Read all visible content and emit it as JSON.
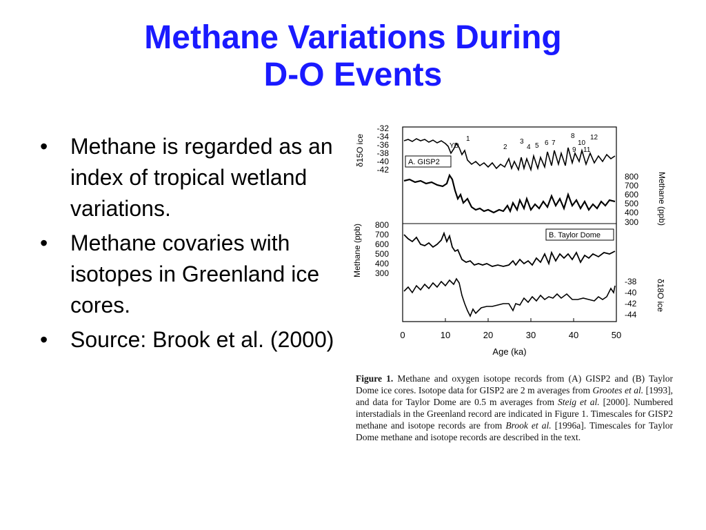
{
  "title": {
    "line1": "Methane Variations During",
    "line2": "D-O Events"
  },
  "bullets": [
    {
      "symbol": "•",
      "text": "Methane is regarded as an index of tropical wetland variations."
    },
    {
      "symbol": "•",
      "text": "Methane covaries with isotopes in Greenland ice cores."
    },
    {
      "symbol": "•",
      "text": "Source: Brook et al. (2000)"
    }
  ],
  "figure": {
    "panel_a_label": "A. GISP2",
    "panel_b_label": "B. Taylor Dome",
    "yd_label": "YD",
    "interstadials": [
      "1",
      "2",
      "3",
      "4",
      "5",
      "6",
      "7",
      "8",
      "9",
      "10",
      "11",
      "12"
    ],
    "x_axis": {
      "label": "Age (ka)",
      "ticks": [
        "0",
        "10",
        "20",
        "30",
        "40",
        "50"
      ]
    },
    "top_left_axis": {
      "label": "δ15O ice",
      "ticks": [
        "-32",
        "-34",
        "-36",
        "-38",
        "-40",
        "-42"
      ]
    },
    "right_methane_axis": {
      "label": "Methane (ppb)",
      "ticks": [
        "800",
        "700",
        "600",
        "500",
        "400",
        "300"
      ]
    },
    "left_methane_axis": {
      "label": "Methane (ppb)",
      "ticks": [
        "800",
        "700",
        "600",
        "500",
        "400",
        "300"
      ]
    },
    "bottom_right_axis": {
      "label": "δ18O ice",
      "ticks": [
        "-38",
        "-40",
        "-42",
        "-44"
      ]
    }
  },
  "caption": {
    "fig_label": "Figure 1.",
    "part1": "Methane and oxygen isotope records from (A) GISP2 and (B) Taylor Dome ice cores. Isotope data for GISP2 are 2 m averages from",
    "ref1": "Grootes et al.",
    "part2": "[1993], and data for Taylor Dome are 0.5 m averages from",
    "ref2": "Steig et al.",
    "part3": "[2000]. Numbered interstadials in the Greenland record are indicated in Figure 1. Timescales for GISP2 methane and isotope records are from",
    "ref3": "Brook et al.",
    "part4": "[1996a]. Timescales for Taylor Dome methane and isotope records are described in the text."
  }
}
